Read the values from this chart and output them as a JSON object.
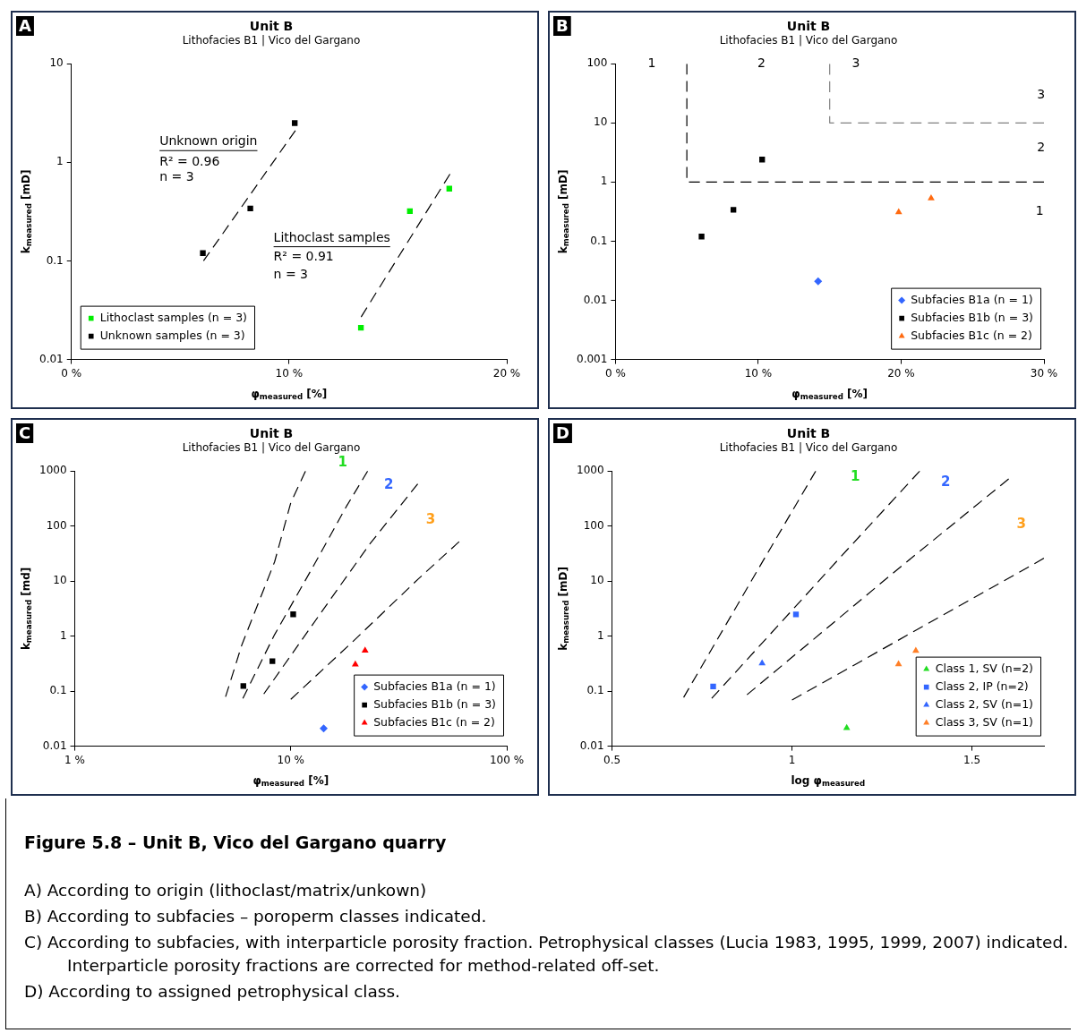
{
  "chart_data": [
    {
      "type": "scatter",
      "title": "Unit B",
      "subtitle": "Lithofacies B1 | Vico del Gargano",
      "xlabel": "φ$_{measured}$ [%]",
      "ylabel": "k$_{measured}$ [mD]",
      "log": "y",
      "xlim": [
        0,
        20
      ],
      "xticks": [
        {
          "value": 0,
          "label": "0 %"
        },
        {
          "value": 10,
          "label": "10 %"
        },
        {
          "value": 20,
          "label": "20 %"
        }
      ],
      "ylim": [
        0.01,
        10
      ],
      "yticks": [
        0.01,
        0.1,
        1,
        10
      ],
      "legend": "bottom left",
      "annotations": [
        "A",
        "Unknown origin",
        "R² = 0.96",
        "n = 3",
        "Lithoclast samples",
        "R² = 0.91",
        "n = 3"
      ],
      "series": [
        {
          "name": "Lithoclast samples (n = 3)",
          "color": "#00ee00",
          "marker": "square",
          "x": [
            13.3,
            15.55,
            17.36
          ],
          "values": [
            0.021,
            0.32,
            0.54
          ]
        },
        {
          "name": "Unknown samples (n = 3)",
          "color": "#000000",
          "marker": "square",
          "x": [
            6.04,
            8.22,
            10.26
          ],
          "values": [
            0.12,
            0.34,
            2.5
          ]
        },
        {
          "type": "line",
          "color": "#000000",
          "line_style": "dashed",
          "marker": "none",
          "x": [
            6.07,
            10.29
          ],
          "values": [
            0.1,
            2.1
          ]
        },
        {
          "type": "line",
          "color": "#000000",
          "line_style": "dashed",
          "marker": "none",
          "x": [
            13.31,
            17.39
          ],
          "values": [
            0.027,
            0.76
          ]
        }
      ]
    },
    {
      "type": "scatter",
      "title": "Unit B",
      "subtitle": "Lithofacies B1 | Vico del Gargano",
      "xlabel": "φ$_{measured}$ [%]",
      "ylabel": "k$_{measured}$ [mD]",
      "log": "y",
      "xlim": [
        0,
        30
      ],
      "xticks": [
        {
          "value": 0,
          "label": "0 %"
        },
        {
          "value": 10,
          "label": "10 %"
        },
        {
          "value": 20,
          "label": "20 %"
        },
        {
          "value": 30,
          "label": "30 %"
        }
      ],
      "ylim": [
        0.001,
        100
      ],
      "yticks": [
        0.001,
        0.01,
        0.1,
        1,
        10,
        100
      ],
      "legend": "bottom right",
      "annotations": [
        "B",
        "1",
        "2",
        "3",
        "3",
        "2",
        "1"
      ],
      "series": [
        {
          "name": "Subfacies B1a (n = 1)",
          "color": "#3366ff",
          "marker": "diamond",
          "x": [
            14.19
          ],
          "values": [
            0.021
          ]
        },
        {
          "name": "Subfacies B1b (n = 3)",
          "color": "#000000",
          "marker": "square",
          "x": [
            6.03,
            8.26,
            10.27
          ],
          "values": [
            0.12,
            0.34,
            2.4
          ]
        },
        {
          "name": "Subfacies B1c (n = 2)",
          "color": "#ff6a10",
          "marker": "triangle",
          "x": [
            19.83,
            22.1
          ],
          "values": [
            0.31,
            0.53
          ]
        },
        {
          "type": "line",
          "color": "#000000",
          "line_style": "dashed",
          "marker": "none",
          "x": [
            5,
            5,
            30
          ],
          "values": [
            100,
            1,
            1
          ]
        },
        {
          "type": "line",
          "color": "#808080",
          "line_style": "dashed",
          "marker": "none",
          "x": [
            15,
            15,
            30
          ],
          "values": [
            100,
            10,
            10
          ]
        }
      ]
    },
    {
      "type": "scatter",
      "title": "Unit B",
      "subtitle": "Lithofacies B1 | Vico del Gargano",
      "xlabel": "φ$_{measured}$ [%]",
      "ylabel": "k$_{measured}$ [md]",
      "log": "xy",
      "xlim": [
        1,
        100
      ],
      "xticks": [
        {
          "value": 1,
          "label": "1 %"
        },
        {
          "value": 10,
          "label": "10 %"
        },
        {
          "value": 100,
          "label": "100 %"
        }
      ],
      "ylim": [
        0.01,
        1000
      ],
      "yticks": [
        0.01,
        0.1,
        1,
        10,
        100,
        1000
      ],
      "legend": "bottom right",
      "annotations": [
        "C",
        "1",
        "2",
        "3"
      ],
      "series": [
        {
          "name": "Subfacies B1a (n = 1)",
          "color": "#3366ff",
          "marker": "diamond",
          "x": [
            14.2
          ],
          "values": [
            0.021
          ]
        },
        {
          "name": "Subfacies B1b (n = 3)",
          "color": "#000000",
          "marker": "square",
          "x": [
            6.03,
            8.22,
            10.26
          ],
          "values": [
            0.124,
            0.35,
            2.49
          ]
        },
        {
          "name": "Subfacies B1c (n = 2)",
          "color": "#ff0000",
          "marker": "triangle",
          "x": [
            19.9,
            22.08
          ],
          "values": [
            0.305,
            0.545
          ]
        },
        {
          "type": "line",
          "color": "#000000",
          "line_style": "dashed",
          "marker": "none",
          "x": [
            4.99,
            5.94,
            8.42,
            10.0,
            11.7
          ],
          "values": [
            0.079,
            0.7,
            22.5,
            265,
            1000
          ]
        },
        {
          "type": "line",
          "color": "#000000",
          "line_style": "dashed",
          "marker": "none",
          "x": [
            6.0,
            8.42,
            12.8,
            18.1,
            22.7
          ],
          "values": [
            0.074,
            1.07,
            19.5,
            228,
            1000
          ]
        },
        {
          "type": "line",
          "color": "#000000",
          "line_style": "dashed",
          "marker": "none",
          "x": [
            7.5,
            13.7,
            23.1,
            38.7
          ],
          "values": [
            0.089,
            2.56,
            46,
            585
          ]
        },
        {
          "type": "line",
          "color": "#000000",
          "line_style": "dashed",
          "marker": "none",
          "x": [
            10.0,
            19.4,
            38.9,
            60.2
          ],
          "values": [
            0.071,
            0.8,
            10.9,
            52
          ]
        }
      ]
    },
    {
      "type": "scatter",
      "title": "Unit B",
      "subtitle": "Lithofacies B1 | Vico del Gargano",
      "xlabel": "log φ$_{measured}$",
      "ylabel": "k$_{measured}$ [mD]",
      "log": "y",
      "xlim": [
        0.5,
        1.7
      ],
      "xticks": [
        0.5,
        1,
        1.5
      ],
      "ylim": [
        0.01,
        1000
      ],
      "yticks": [
        0.01,
        0.1,
        1,
        10,
        100,
        1000
      ],
      "legend": "bottom right",
      "annotations": [
        "D",
        "1",
        "2",
        "3"
      ],
      "series": [
        {
          "name": "Class 1, SV (n=2)",
          "color": "#22dd22",
          "marker": "triangle",
          "x": [
            1.152
          ],
          "values": [
            0.0214
          ]
        },
        {
          "name": "Class 2, IP (n=2)",
          "color": "#3366ff",
          "marker": "square",
          "x": [
            0.781,
            1.011
          ],
          "values": [
            0.122,
            2.48
          ]
        },
        {
          "name": "Class 2, SV (n=1)",
          "color": "#3366ff",
          "marker": "triangle",
          "x": [
            0.917
          ],
          "values": [
            0.32
          ]
        },
        {
          "name": "Class 3, SV (n=1)",
          "color": "#ff7f27",
          "marker": "triangle",
          "x": [
            1.296,
            1.344
          ],
          "values": [
            0.31,
            0.54
          ]
        },
        {
          "type": "line",
          "color": "#000000",
          "line_style": "dashed",
          "marker": "none",
          "x": [
            0.699,
            0.919,
            1.066
          ],
          "values": [
            0.077,
            23,
            1000
          ]
        },
        {
          "type": "line",
          "color": "#000000",
          "line_style": "dashed",
          "marker": "none",
          "x": [
            0.777,
            1.156,
            1.355
          ],
          "values": [
            0.074,
            38.7,
            1000
          ]
        },
        {
          "type": "line",
          "color": "#000000",
          "line_style": "dashed",
          "marker": "none",
          "x": [
            0.875,
            1.292,
            1.602
          ],
          "values": [
            0.086,
            16.1,
            720
          ]
        },
        {
          "type": "line",
          "color": "#000000",
          "line_style": "dashed",
          "marker": "none",
          "x": [
            1.0,
            1.7
          ],
          "values": [
            0.069,
            26
          ]
        }
      ]
    },
    {
      "type": "other",
      "title": "Figure 5.8 – Unit B, Vico del Gargano quarry",
      "annotations": [
        "A) According to origin (lithoclast/matrix/unkown)",
        "B) According to subfacies – poroperm classes indicated.",
        "C) According to subfacies, with interparticle porosity fraction. Petrophysical classes (Lucia 1983, 1995, 1999, 2007) indicated. Interparticle porosity fractions are corrected for method-related off-set.",
        "D) According to assigned petrophysical class."
      ]
    }
  ]
}
